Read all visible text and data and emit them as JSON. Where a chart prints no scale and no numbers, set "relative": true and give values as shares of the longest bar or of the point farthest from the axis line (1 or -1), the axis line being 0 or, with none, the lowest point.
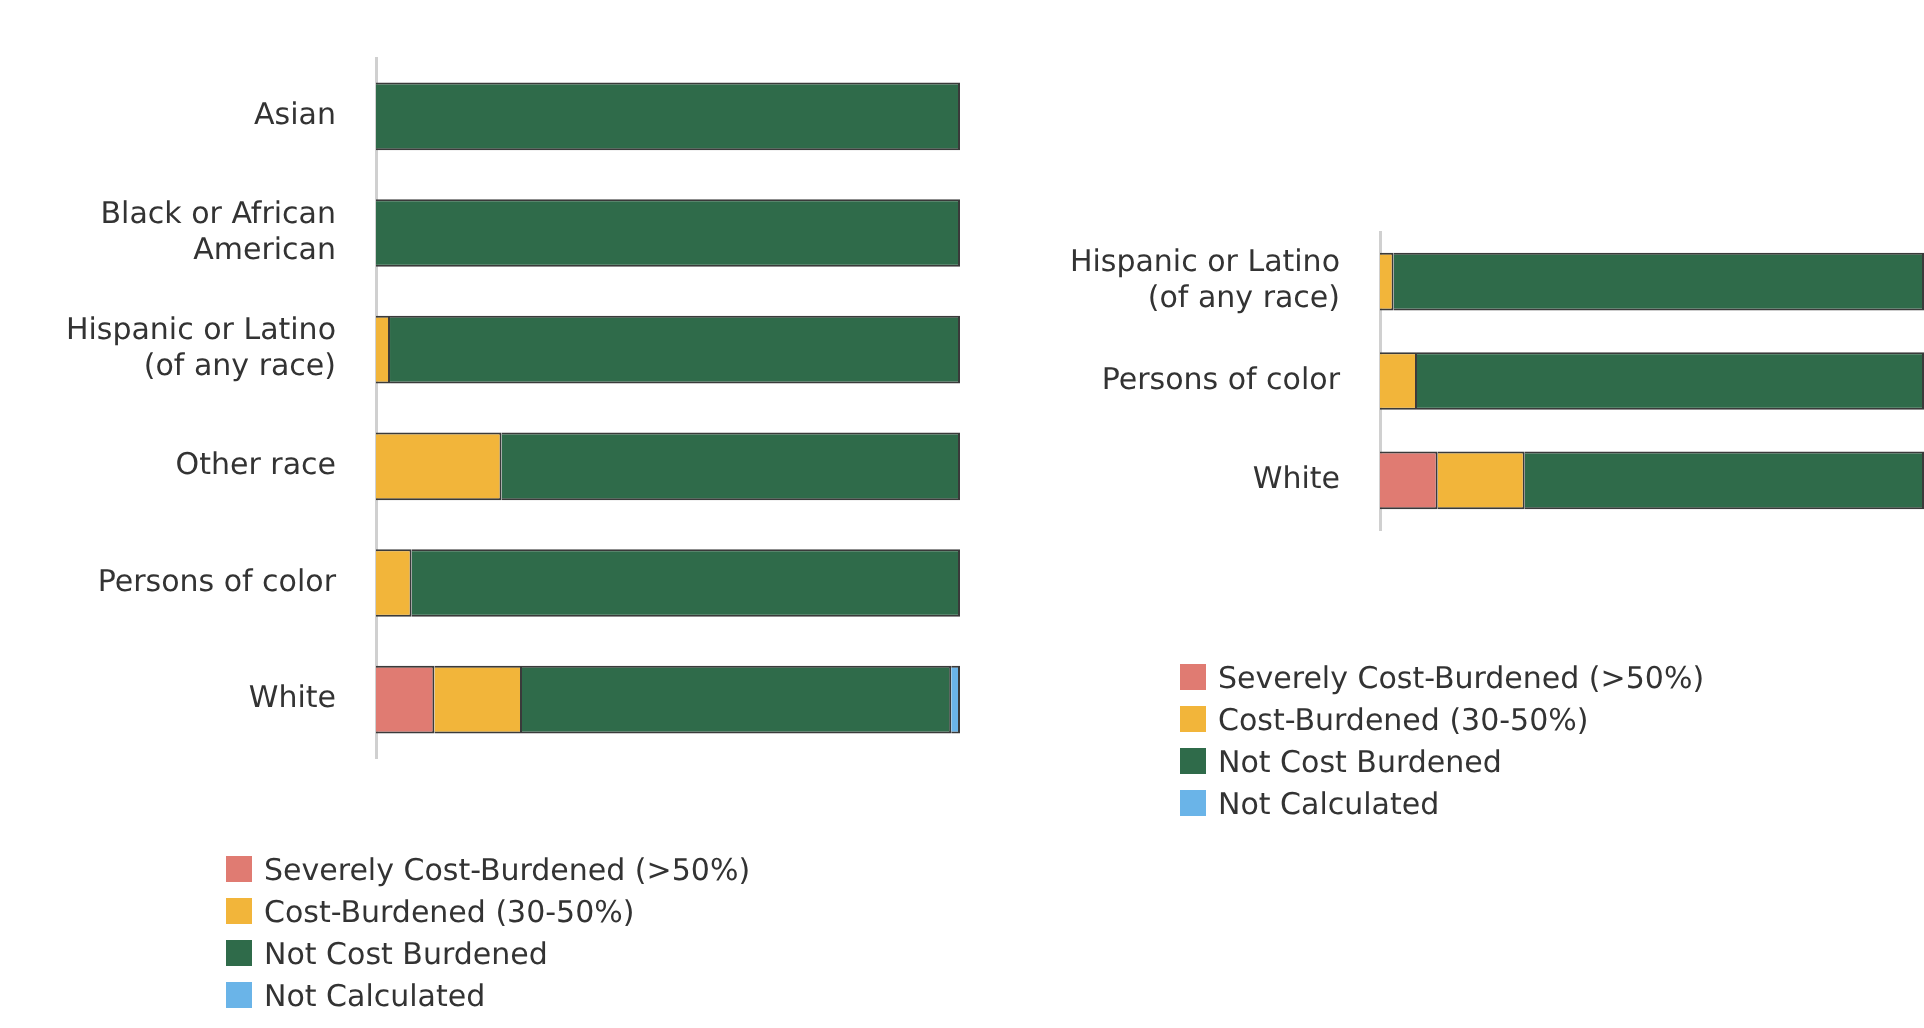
{
  "chart_data": [
    {
      "type": "bar",
      "orientation": "horizontal",
      "stacked": true,
      "relative": true,
      "legend": "bottom left",
      "categories": [
        "Asian",
        "Black or African American",
        "Hispanic or Latino (of any race)",
        "Other race",
        "Persons of color",
        "White"
      ],
      "series": [
        {
          "name": "Severely Cost-Burdened (>50%)",
          "color": "#e07b72",
          "values": [
            0,
            0,
            0,
            0,
            0,
            0.1
          ]
        },
        {
          "name": "Cost-Burdened (30-50%)",
          "color": "#f2b53a",
          "values": [
            0,
            0,
            0.024,
            0.215,
            0.061,
            0.15
          ]
        },
        {
          "name": "Not Cost Burdened",
          "color": "#2f6b4a",
          "values": [
            1,
            1,
            0.976,
            0.785,
            0.939,
            0.735
          ]
        },
        {
          "name": "Not Calculated",
          "color": "#6ab4e8",
          "values": [
            0,
            0,
            0,
            0,
            0,
            0.015
          ]
        }
      ]
    },
    {
      "type": "bar",
      "orientation": "horizontal",
      "stacked": true,
      "relative": true,
      "legend": "bottom left",
      "categories": [
        "Hispanic or Latino (of any race)",
        "Persons of color",
        "White"
      ],
      "series": [
        {
          "name": "Severely Cost-Burdened (>50%)",
          "color": "#e07b72",
          "values": [
            0,
            0,
            0.106
          ]
        },
        {
          "name": "Cost-Burdened (30-50%)",
          "color": "#f2b53a",
          "values": [
            0.025,
            0.068,
            0.16
          ]
        },
        {
          "name": "Not Cost Burdened",
          "color": "#2f6b4a",
          "values": [
            0.975,
            0.932,
            0.734
          ]
        },
        {
          "name": "Not Calculated",
          "color": "#6ab4e8",
          "values": [
            0,
            0,
            0
          ]
        }
      ]
    }
  ]
}
